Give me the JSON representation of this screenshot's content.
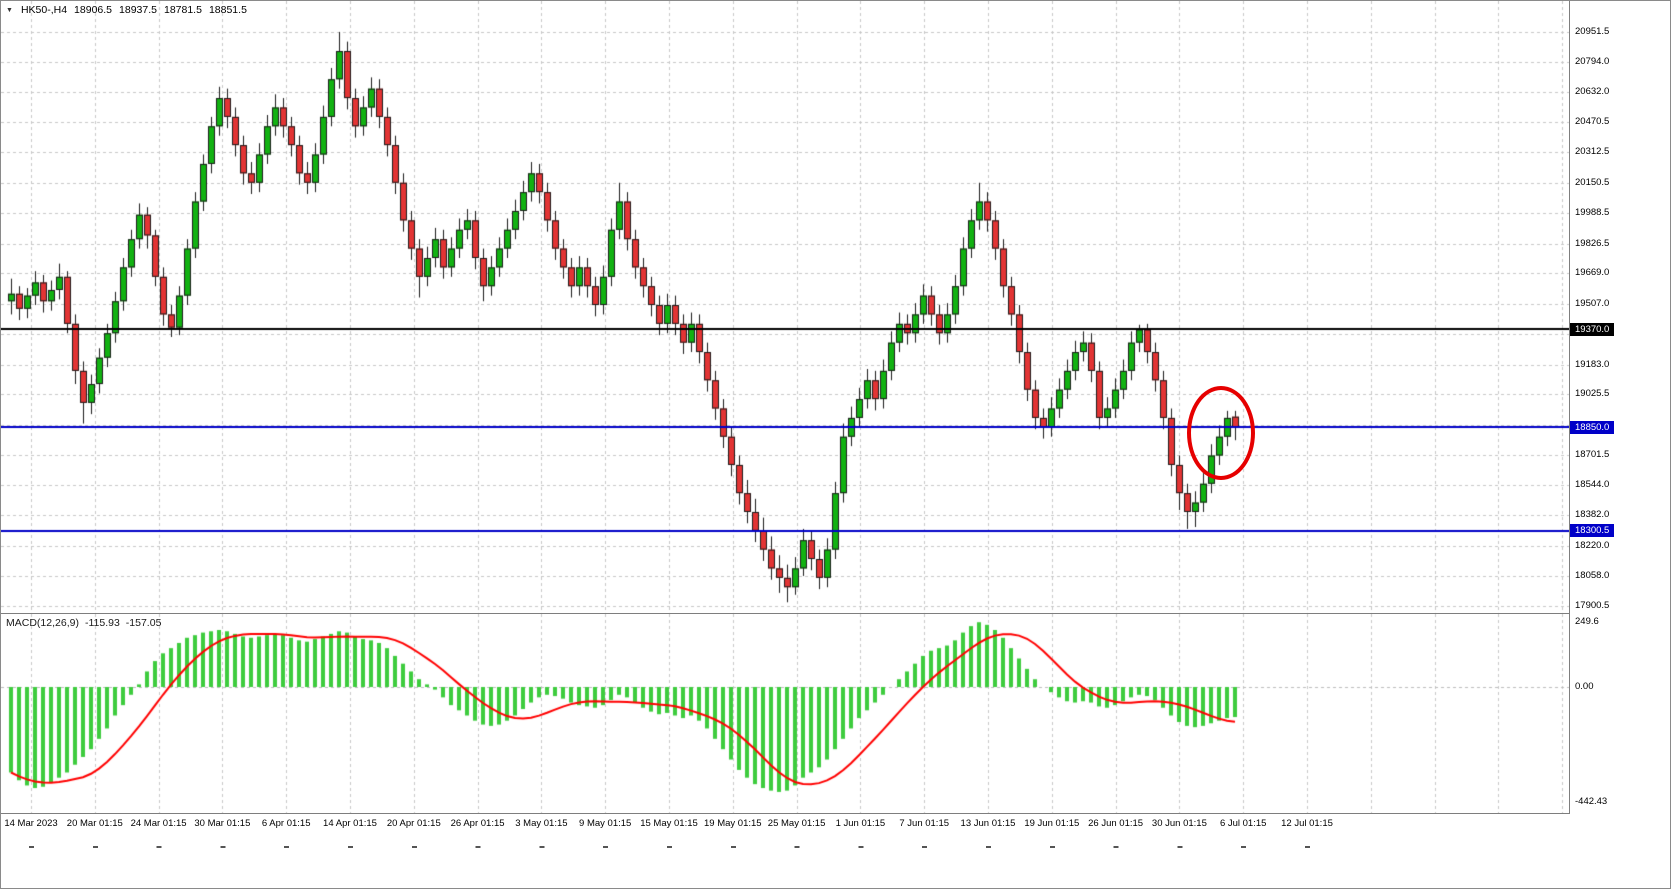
{
  "quote_bar": {
    "symbol_period": "HK50-,H4",
    "open": "18906.5",
    "high": "18937.5",
    "low": "18781.5",
    "close": "18851.5"
  },
  "macd_panel": {
    "label": "MACD(12,26,9)",
    "main_value": "-115.93",
    "signal_value": "-157.05"
  },
  "annotations": {
    "highlight_circle": {
      "shape": "ellipse",
      "color": "#E60000"
    }
  },
  "chart_data": {
    "type": "candlestick",
    "symbol": "HK50-",
    "timeframe": "H4",
    "title": "HK50- H4 candlestick chart with MACD(12,26,9)",
    "price_axis_ticks": [
      20951.5,
      20794.0,
      20632.0,
      20470.5,
      20312.5,
      20150.5,
      19988.5,
      19826.5,
      19669.0,
      19507.0,
      19183.0,
      19025.5,
      18701.5,
      18544.0,
      18382.0,
      18220.0,
      18058.0,
      17900.5
    ],
    "grid_prices": [
      20951.5,
      20794.0,
      20632.0,
      20470.5,
      20312.5,
      20150.5,
      19988.5,
      19826.5,
      19669.0,
      19507.0,
      19345.5,
      19183.0,
      19025.5,
      18863.5,
      18701.5,
      18544.0,
      18382.0,
      18220.0,
      18058.0,
      17900.5
    ],
    "hlines": [
      {
        "price": 19370.0,
        "label": "19370.0",
        "color": "#000000"
      },
      {
        "price": 18850.0,
        "label": "18850.0",
        "color": "#0000C8"
      },
      {
        "price": 18300.5,
        "label": "18300.5",
        "color": "#0000C8"
      }
    ],
    "macd_axis_ticks": [
      {
        "label": "249.6",
        "value": 249.6
      },
      {
        "label": "0.00",
        "value": 0
      },
      {
        "label": "-442.43",
        "value": -442.43
      }
    ],
    "date_labels": [
      "14 Mar 2023",
      "20 Mar 01:15",
      "24 Mar 01:15",
      "30 Mar 01:15",
      "6 Apr 01:15",
      "14 Apr 01:15",
      "20 Apr 01:15",
      "26 Apr 01:15",
      "3 May 01:15",
      "9 May 01:15",
      "15 May 01:15",
      "19 May 01:15",
      "25 May 01:15",
      "1 Jun 01:15",
      "7 Jun 01:15",
      "13 Jun 01:15",
      "19 Jun 01:15",
      "26 Jun 01:15",
      "30 Jun 01:15",
      "6 Jul 01:15",
      "12 Jul 01:15"
    ],
    "candles": [
      [
        19520,
        19640,
        19450,
        19560
      ],
      [
        19560,
        19600,
        19420,
        19480
      ],
      [
        19480,
        19590,
        19430,
        19550
      ],
      [
        19550,
        19680,
        19500,
        19620
      ],
      [
        19620,
        19660,
        19460,
        19520
      ],
      [
        19520,
        19630,
        19470,
        19580
      ],
      [
        19580,
        19720,
        19530,
        19650
      ],
      [
        19650,
        19680,
        19350,
        19400
      ],
      [
        19400,
        19450,
        19080,
        19150
      ],
      [
        19150,
        19200,
        18870,
        18980
      ],
      [
        18980,
        19130,
        18920,
        19080
      ],
      [
        19080,
        19270,
        19030,
        19220
      ],
      [
        19220,
        19400,
        19170,
        19350
      ],
      [
        19350,
        19570,
        19300,
        19520
      ],
      [
        19520,
        19750,
        19470,
        19700
      ],
      [
        19700,
        19900,
        19650,
        19850
      ],
      [
        19850,
        20040,
        19800,
        19980
      ],
      [
        19980,
        20020,
        19800,
        19870
      ],
      [
        19870,
        19900,
        19600,
        19650
      ],
      [
        19650,
        19700,
        19390,
        19450
      ],
      [
        19450,
        19500,
        19330,
        19380
      ],
      [
        19380,
        19600,
        19340,
        19550
      ],
      [
        19550,
        19850,
        19500,
        19800
      ],
      [
        19800,
        20100,
        19750,
        20050
      ],
      [
        20050,
        20300,
        20000,
        20250
      ],
      [
        20250,
        20500,
        20200,
        20450
      ],
      [
        20450,
        20660,
        20400,
        20600
      ],
      [
        20600,
        20650,
        20440,
        20500
      ],
      [
        20500,
        20550,
        20290,
        20350
      ],
      [
        20350,
        20400,
        20140,
        20200
      ],
      [
        20200,
        20260,
        20090,
        20150
      ],
      [
        20150,
        20360,
        20100,
        20300
      ],
      [
        20300,
        20510,
        20250,
        20450
      ],
      [
        20450,
        20620,
        20400,
        20550
      ],
      [
        20550,
        20600,
        20390,
        20450
      ],
      [
        20450,
        20500,
        20290,
        20350
      ],
      [
        20350,
        20400,
        20140,
        20200
      ],
      [
        20200,
        20260,
        20090,
        20150
      ],
      [
        20150,
        20360,
        20100,
        20300
      ],
      [
        20300,
        20560,
        20250,
        20500
      ],
      [
        20500,
        20760,
        20450,
        20700
      ],
      [
        20700,
        20951.5,
        20650,
        20850
      ],
      [
        20850,
        20900,
        20540,
        20600
      ],
      [
        20600,
        20650,
        20390,
        20450
      ],
      [
        20450,
        20610,
        20400,
        20550
      ],
      [
        20550,
        20710,
        20500,
        20650
      ],
      [
        20650,
        20700,
        20440,
        20500
      ],
      [
        20500,
        20550,
        20290,
        20350
      ],
      [
        20350,
        20400,
        20090,
        20150
      ],
      [
        20150,
        20200,
        19890,
        19950
      ],
      [
        19950,
        20000,
        19740,
        19800
      ],
      [
        19800,
        19850,
        19540,
        19650
      ],
      [
        19650,
        19810,
        19600,
        19750
      ],
      [
        19750,
        19910,
        19700,
        19850
      ],
      [
        19850,
        19900,
        19640,
        19700
      ],
      [
        19700,
        19860,
        19650,
        19800
      ],
      [
        19800,
        19960,
        19750,
        19900
      ],
      [
        19900,
        20010,
        19850,
        19950
      ],
      [
        19950,
        20000,
        19690,
        19750
      ],
      [
        19750,
        19800,
        19520,
        19600
      ],
      [
        19600,
        19760,
        19550,
        19700
      ],
      [
        19700,
        19860,
        19650,
        19800
      ],
      [
        19800,
        19960,
        19750,
        19900
      ],
      [
        19900,
        20060,
        19850,
        20000
      ],
      [
        20000,
        20160,
        19950,
        20100
      ],
      [
        20100,
        20260,
        20050,
        20200
      ],
      [
        20200,
        20250,
        20040,
        20100
      ],
      [
        20100,
        20150,
        19890,
        19950
      ],
      [
        19950,
        20000,
        19740,
        19800
      ],
      [
        19800,
        19850,
        19640,
        19700
      ],
      [
        19700,
        19750,
        19540,
        19600
      ],
      [
        19600,
        19760,
        19550,
        19700
      ],
      [
        19700,
        19750,
        19540,
        19600
      ],
      [
        19600,
        19650,
        19440,
        19500
      ],
      [
        19500,
        19710,
        19450,
        19650
      ],
      [
        19650,
        19960,
        19600,
        19900
      ],
      [
        19900,
        20150,
        19850,
        20050
      ],
      [
        20050,
        20100,
        19790,
        19850
      ],
      [
        19850,
        19900,
        19640,
        19700
      ],
      [
        19700,
        19750,
        19540,
        19600
      ],
      [
        19600,
        19650,
        19440,
        19500
      ],
      [
        19500,
        19550,
        19340,
        19400
      ],
      [
        19400,
        19560,
        19350,
        19500
      ],
      [
        19500,
        19550,
        19340,
        19400
      ],
      [
        19400,
        19450,
        19240,
        19300
      ],
      [
        19300,
        19460,
        19250,
        19400
      ],
      [
        19400,
        19450,
        19190,
        19250
      ],
      [
        19250,
        19300,
        19040,
        19100
      ],
      [
        19100,
        19150,
        18890,
        18950
      ],
      [
        18950,
        19000,
        18740,
        18800
      ],
      [
        18800,
        18850,
        18590,
        18650
      ],
      [
        18650,
        18700,
        18440,
        18500
      ],
      [
        18500,
        18570,
        18340,
        18400
      ],
      [
        18400,
        18470,
        18240,
        18300
      ],
      [
        18300,
        18370,
        18140,
        18200
      ],
      [
        18200,
        18270,
        18040,
        18100
      ],
      [
        18100,
        18170,
        17970,
        18050
      ],
      [
        18050,
        18120,
        17920,
        18000
      ],
      [
        18000,
        18160,
        17960,
        18100
      ],
      [
        18100,
        18310,
        18060,
        18250
      ],
      [
        18250,
        18300,
        18090,
        18150
      ],
      [
        18150,
        18200,
        17990,
        18050
      ],
      [
        18050,
        18260,
        18000,
        18200
      ],
      [
        18200,
        18560,
        18150,
        18500
      ],
      [
        18500,
        18870,
        18450,
        18800
      ],
      [
        18800,
        18960,
        18750,
        18900
      ],
      [
        18900,
        19060,
        18850,
        19000
      ],
      [
        19000,
        19160,
        18950,
        19100
      ],
      [
        19100,
        19150,
        18940,
        19000
      ],
      [
        19000,
        19210,
        18950,
        19150
      ],
      [
        19150,
        19360,
        19100,
        19300
      ],
      [
        19300,
        19460,
        19250,
        19400
      ],
      [
        19400,
        19450,
        19290,
        19350
      ],
      [
        19350,
        19510,
        19300,
        19450
      ],
      [
        19450,
        19610,
        19400,
        19550
      ],
      [
        19550,
        19600,
        19390,
        19450
      ],
      [
        19450,
        19500,
        19290,
        19350
      ],
      [
        19350,
        19510,
        19300,
        19450
      ],
      [
        19450,
        19660,
        19400,
        19600
      ],
      [
        19600,
        19860,
        19550,
        19800
      ],
      [
        19800,
        20010,
        19750,
        19950
      ],
      [
        19950,
        20150,
        19900,
        20050
      ],
      [
        20050,
        20100,
        19890,
        19950
      ],
      [
        19950,
        20000,
        19740,
        19800
      ],
      [
        19800,
        19850,
        19540,
        19600
      ],
      [
        19600,
        19650,
        19390,
        19450
      ],
      [
        19450,
        19500,
        19190,
        19250
      ],
      [
        19250,
        19300,
        18990,
        19050
      ],
      [
        19050,
        19100,
        18840,
        18900
      ],
      [
        18900,
        18950,
        18790,
        18850
      ],
      [
        18850,
        19010,
        18800,
        18950
      ],
      [
        18950,
        19110,
        18900,
        19050
      ],
      [
        19050,
        19210,
        19000,
        19150
      ],
      [
        19150,
        19310,
        19100,
        19250
      ],
      [
        19250,
        19360,
        19200,
        19300
      ],
      [
        19300,
        19350,
        19090,
        19150
      ],
      [
        19150,
        19200,
        18840,
        18900
      ],
      [
        18900,
        19010,
        18850,
        18950
      ],
      [
        18950,
        19110,
        18900,
        19050
      ],
      [
        19050,
        19210,
        19000,
        19150
      ],
      [
        19150,
        19360,
        19100,
        19300
      ],
      [
        19300,
        19395,
        19250,
        19370
      ],
      [
        19370,
        19400,
        19190,
        19250
      ],
      [
        19250,
        19300,
        19040,
        19100
      ],
      [
        19100,
        19150,
        18840,
        18900
      ],
      [
        18900,
        18950,
        18590,
        18650
      ],
      [
        18650,
        18700,
        18410,
        18500
      ],
      [
        18500,
        18550,
        18310,
        18400
      ],
      [
        18400,
        18510,
        18320,
        18450
      ],
      [
        18450,
        18610,
        18400,
        18550
      ],
      [
        18550,
        18760,
        18500,
        18700
      ],
      [
        18700,
        18860,
        18650,
        18800
      ],
      [
        18800,
        18937.5,
        18750,
        18900
      ],
      [
        18906.5,
        18937.5,
        18781.5,
        18851.5
      ]
    ],
    "macd_values": [
      -330,
      -360,
      -380,
      -390,
      -385,
      -370,
      -350,
      -330,
      -300,
      -270,
      -240,
      -200,
      -160,
      -110,
      -70,
      -30,
      10,
      60,
      100,
      130,
      150,
      170,
      190,
      200,
      210,
      215,
      220,
      215,
      205,
      195,
      190,
      195,
      200,
      205,
      200,
      190,
      180,
      175,
      185,
      195,
      205,
      215,
      210,
      195,
      185,
      180,
      170,
      150,
      120,
      90,
      60,
      30,
      10,
      -10,
      -40,
      -70,
      -90,
      -110,
      -130,
      -145,
      -150,
      -145,
      -130,
      -110,
      -85,
      -60,
      -40,
      -30,
      -35,
      -45,
      -60,
      -70,
      -75,
      -80,
      -70,
      -50,
      -30,
      -40,
      -60,
      -80,
      -95,
      -105,
      -100,
      -110,
      -120,
      -110,
      -130,
      -160,
      -200,
      -240,
      -280,
      -320,
      -350,
      -375,
      -390,
      -400,
      -405,
      -400,
      -380,
      -350,
      -330,
      -310,
      -280,
      -240,
      -200,
      -160,
      -120,
      -90,
      -60,
      -30,
      0,
      30,
      60,
      90,
      120,
      140,
      150,
      160,
      180,
      210,
      235,
      250,
      240,
      220,
      190,
      150,
      110,
      70,
      30,
      0,
      -20,
      -40,
      -55,
      -60,
      -55,
      -60,
      -75,
      -80,
      -70,
      -55,
      -40,
      -30,
      -35,
      -50,
      -80,
      -110,
      -135,
      -150,
      -155,
      -150,
      -140,
      -130,
      -120,
      -115.93
    ],
    "colors": {
      "up": "#12B212",
      "down": "#E23434",
      "wick": "#1a1a1a",
      "grid": "#c8c8c8",
      "macd_hist": "#3ECC3E",
      "macd_signal": "#FF0000",
      "zero_line": "#bdbdbd",
      "tag_text": "#ffffff"
    },
    "ylim_main": [
      17900.5,
      20951.5
    ],
    "ylim_macd": [
      -442.43,
      249.6
    ],
    "grid": "dashed"
  }
}
